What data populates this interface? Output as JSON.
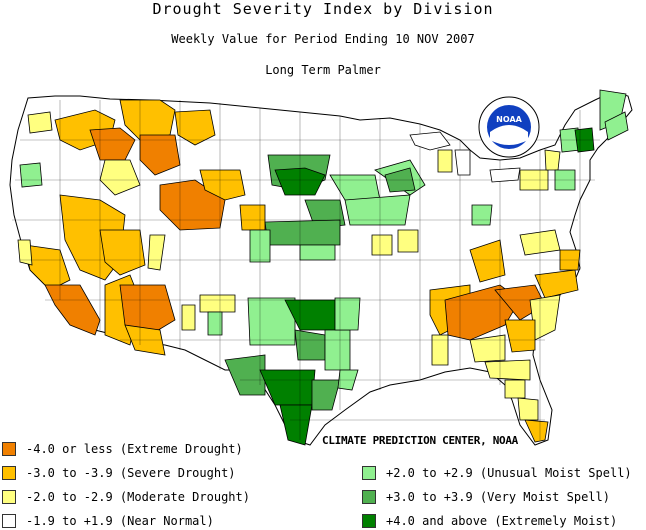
{
  "title": "Drought Severity Index by Division",
  "subtitle": "Weekly Value for Period Ending 10 NOV 2007",
  "index_name": "Long Term Palmer",
  "credit": "CLIMATE PREDICTION CENTER, NOAA",
  "logo_text": "NOAA",
  "colors": {
    "extreme_drought": "#f08000",
    "severe_drought": "#ffc000",
    "moderate_drought": "#ffff80",
    "near_normal": "#ffffff",
    "unusual_moist": "#90f090",
    "very_moist": "#50b050",
    "extremely_moist": "#008000",
    "boundary": "#000000"
  },
  "legend_left": [
    {
      "label": "-4.0 or less (Extreme Drought)",
      "color": "#f08000"
    },
    {
      "label": "-3.0 to -3.9 (Severe Drought)",
      "color": "#ffc000"
    },
    {
      "label": "-2.0 to -2.9 (Moderate Drought)",
      "color": "#ffff80"
    },
    {
      "label": "-1.9 to +1.9 (Near Normal)",
      "color": "#ffffff"
    }
  ],
  "legend_right": [
    {
      "label": "+2.0 to +2.9 (Unusual Moist Spell)",
      "color": "#90f090"
    },
    {
      "label": "+3.0 to +3.9 (Very Moist Spell)",
      "color": "#50b050"
    },
    {
      "label": "+4.0 and above (Extremely Moist)",
      "color": "#008000"
    }
  ]
}
